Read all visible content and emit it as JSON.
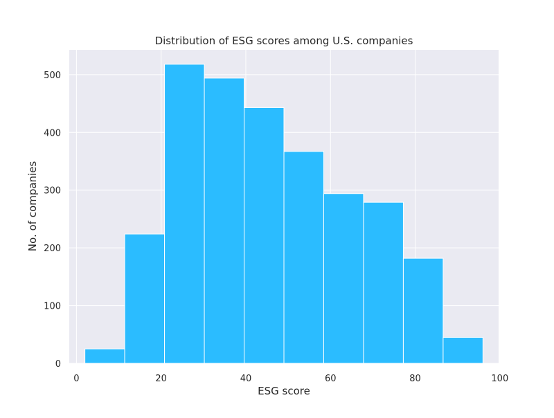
{
  "chart_data": {
    "type": "bar",
    "subtype": "histogram",
    "title": "Distribution of ESG scores among U.S. companies",
    "xlabel": "ESG score",
    "ylabel": "No. of companies",
    "xlim": [
      -1.7,
      99.7
    ],
    "ylim": [
      0,
      543
    ],
    "xticks": [
      0,
      20,
      40,
      60,
      80,
      100
    ],
    "yticks": [
      0,
      100,
      200,
      300,
      400,
      500
    ],
    "grid": true,
    "legend": "none",
    "colors": {
      "bar": "#2bbcff",
      "bar_edge": "#ffffff",
      "plot_background": "#eaeaf2",
      "grid": "#ffffff"
    },
    "bins": [
      {
        "x0": 2.0,
        "x1": 11.4,
        "value": 25
      },
      {
        "x0": 11.4,
        "x1": 20.8,
        "value": 224
      },
      {
        "x0": 20.8,
        "x1": 30.2,
        "value": 518
      },
      {
        "x0": 30.2,
        "x1": 39.6,
        "value": 494
      },
      {
        "x0": 39.6,
        "x1": 49.0,
        "value": 443
      },
      {
        "x0": 49.0,
        "x1": 58.4,
        "value": 367
      },
      {
        "x0": 58.4,
        "x1": 67.8,
        "value": 294
      },
      {
        "x0": 67.8,
        "x1": 77.2,
        "value": 279
      },
      {
        "x0": 77.2,
        "x1": 86.6,
        "value": 182
      },
      {
        "x0": 86.6,
        "x1": 96.0,
        "value": 45
      }
    ]
  }
}
